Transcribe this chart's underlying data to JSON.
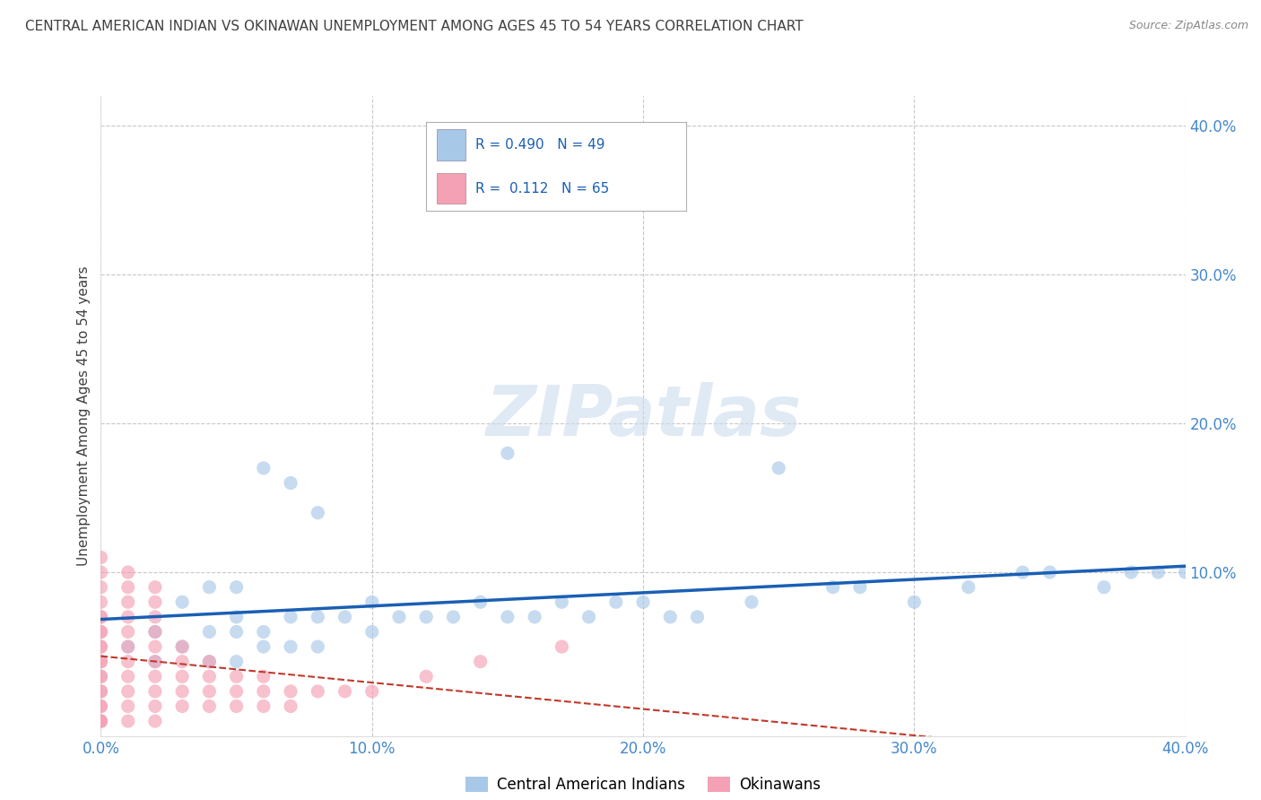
{
  "title": "CENTRAL AMERICAN INDIAN VS OKINAWAN UNEMPLOYMENT AMONG AGES 45 TO 54 YEARS CORRELATION CHART",
  "source": "Source: ZipAtlas.com",
  "ylabel": "Unemployment Among Ages 45 to 54 years",
  "xlim": [
    0.0,
    0.4
  ],
  "ylim": [
    -0.01,
    0.42
  ],
  "xticks": [
    0.0,
    0.1,
    0.2,
    0.3,
    0.4
  ],
  "yticks": [
    0.1,
    0.2,
    0.3,
    0.4
  ],
  "xticklabels": [
    "0.0%",
    "10.0%",
    "20.0%",
    "30.0%",
    "40.0%"
  ],
  "yticklabels": [
    "10.0%",
    "20.0%",
    "30.0%",
    "40.0%"
  ],
  "watermark": "ZIPatlas",
  "blue_color": "#a8c8e8",
  "pink_color": "#f4a0b5",
  "blue_line_color": "#1a5fb4",
  "pink_line_color": "#c0392b",
  "background_color": "#ffffff",
  "grid_color": "#c8c8c8",
  "title_color": "#404040",
  "axis_tick_color": "#4488cc",
  "blue_x": [
    0.01,
    0.02,
    0.02,
    0.03,
    0.03,
    0.04,
    0.04,
    0.04,
    0.05,
    0.05,
    0.05,
    0.05,
    0.06,
    0.06,
    0.06,
    0.07,
    0.07,
    0.07,
    0.08,
    0.08,
    0.08,
    0.09,
    0.1,
    0.1,
    0.11,
    0.12,
    0.13,
    0.14,
    0.15,
    0.15,
    0.16,
    0.17,
    0.18,
    0.19,
    0.2,
    0.21,
    0.22,
    0.24,
    0.25,
    0.27,
    0.28,
    0.3,
    0.32,
    0.34,
    0.35,
    0.37,
    0.38,
    0.39,
    0.4
  ],
  "blue_y": [
    0.05,
    0.04,
    0.06,
    0.05,
    0.08,
    0.04,
    0.06,
    0.09,
    0.04,
    0.06,
    0.07,
    0.09,
    0.05,
    0.06,
    0.17,
    0.05,
    0.07,
    0.16,
    0.05,
    0.07,
    0.14,
    0.07,
    0.06,
    0.08,
    0.07,
    0.07,
    0.07,
    0.08,
    0.07,
    0.18,
    0.07,
    0.08,
    0.07,
    0.08,
    0.08,
    0.07,
    0.07,
    0.08,
    0.17,
    0.09,
    0.09,
    0.08,
    0.09,
    0.1,
    0.1,
    0.09,
    0.1,
    0.1,
    0.1
  ],
  "pink_x": [
    0.0,
    0.0,
    0.0,
    0.0,
    0.0,
    0.0,
    0.0,
    0.0,
    0.0,
    0.0,
    0.0,
    0.0,
    0.0,
    0.0,
    0.0,
    0.0,
    0.0,
    0.0,
    0.0,
    0.0,
    0.0,
    0.01,
    0.01,
    0.01,
    0.01,
    0.01,
    0.01,
    0.01,
    0.01,
    0.01,
    0.01,
    0.01,
    0.02,
    0.02,
    0.02,
    0.02,
    0.02,
    0.02,
    0.02,
    0.02,
    0.02,
    0.02,
    0.03,
    0.03,
    0.03,
    0.03,
    0.03,
    0.04,
    0.04,
    0.04,
    0.04,
    0.05,
    0.05,
    0.05,
    0.06,
    0.06,
    0.06,
    0.07,
    0.07,
    0.08,
    0.09,
    0.1,
    0.12,
    0.14,
    0.17
  ],
  "pink_y": [
    0.0,
    0.0,
    0.0,
    0.01,
    0.01,
    0.02,
    0.02,
    0.03,
    0.03,
    0.04,
    0.04,
    0.05,
    0.05,
    0.06,
    0.06,
    0.07,
    0.07,
    0.08,
    0.09,
    0.1,
    0.11,
    0.0,
    0.01,
    0.02,
    0.03,
    0.04,
    0.05,
    0.06,
    0.07,
    0.08,
    0.09,
    0.1,
    0.0,
    0.01,
    0.02,
    0.03,
    0.04,
    0.05,
    0.06,
    0.07,
    0.08,
    0.09,
    0.01,
    0.02,
    0.03,
    0.04,
    0.05,
    0.01,
    0.02,
    0.03,
    0.04,
    0.01,
    0.02,
    0.03,
    0.01,
    0.02,
    0.03,
    0.01,
    0.02,
    0.02,
    0.02,
    0.02,
    0.03,
    0.04,
    0.05
  ]
}
